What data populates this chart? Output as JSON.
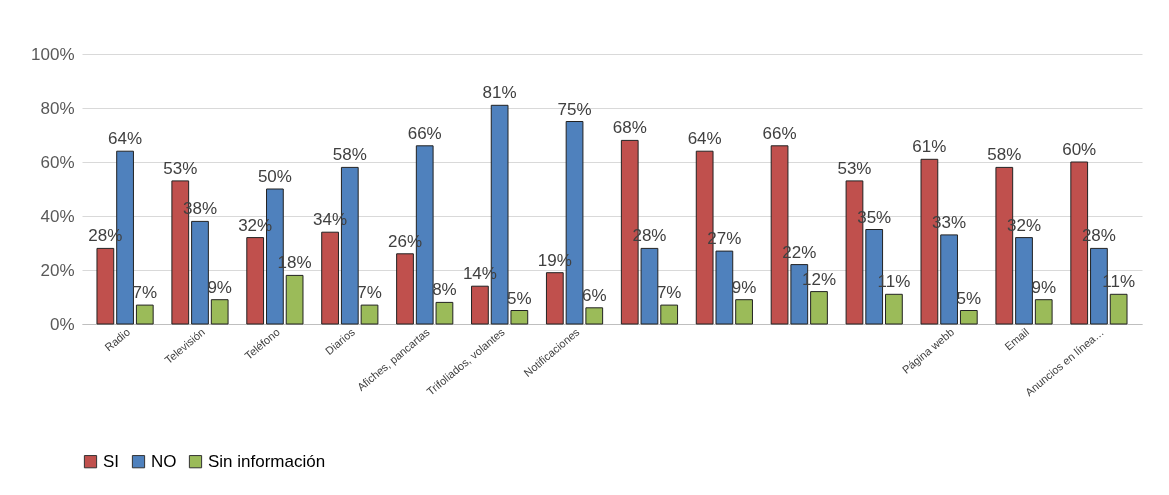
{
  "chart_data": {
    "type": "bar",
    "categories": [
      "Radio",
      "Televisión",
      "Teléfono",
      "Diarios",
      "Afiches, pancartas",
      "Trifoliados, volantes",
      "Notificaciones",
      null,
      null,
      null,
      null,
      "Página webb",
      "Email",
      "Anuncios en línea…"
    ],
    "series": [
      {
        "name": "SI",
        "color": "#c0504d",
        "values": [
          28,
          53,
          32,
          34,
          26,
          14,
          19,
          68,
          64,
          66,
          53,
          61,
          58,
          60
        ],
        "value_labels": [
          "28%",
          "53%",
          "32%",
          "34%",
          "26%",
          "14%",
          "19%",
          "68%",
          "64%",
          "66%",
          "53%",
          "61%",
          "58%",
          "60%"
        ]
      },
      {
        "name": "NO",
        "color": "#4f81bd",
        "values": [
          64,
          38,
          50,
          58,
          66,
          81,
          75,
          28,
          27,
          22,
          35,
          33,
          32,
          28
        ],
        "value_labels": [
          "64%",
          "38%",
          "50%",
          "58%",
          "66%",
          "81%",
          "75%",
          "28%",
          "27%",
          "22%",
          "35%",
          "33%",
          "32%",
          "28%"
        ]
      },
      {
        "name": "Sin información",
        "color": "#9bbb59",
        "values": [
          7,
          9,
          18,
          7,
          8,
          5,
          6,
          7,
          9,
          12,
          11,
          5,
          9,
          11
        ],
        "value_labels": [
          "7%",
          "9%",
          "18%",
          "7%",
          "8%",
          "5%",
          "6%",
          "7%",
          "9%",
          "12%",
          "11%",
          "5%",
          "9%",
          "11%"
        ]
      }
    ],
    "ylim": [
      0,
      100
    ],
    "yticks": [
      {
        "value": 0,
        "label": "0%"
      },
      {
        "value": 20,
        "label": "20%"
      },
      {
        "value": 40,
        "label": "40%"
      },
      {
        "value": 60,
        "label": "60%"
      },
      {
        "value": 80,
        "label": "80%"
      },
      {
        "value": 100,
        "label": "100%"
      }
    ],
    "grid": "y",
    "legend": "bottom"
  }
}
